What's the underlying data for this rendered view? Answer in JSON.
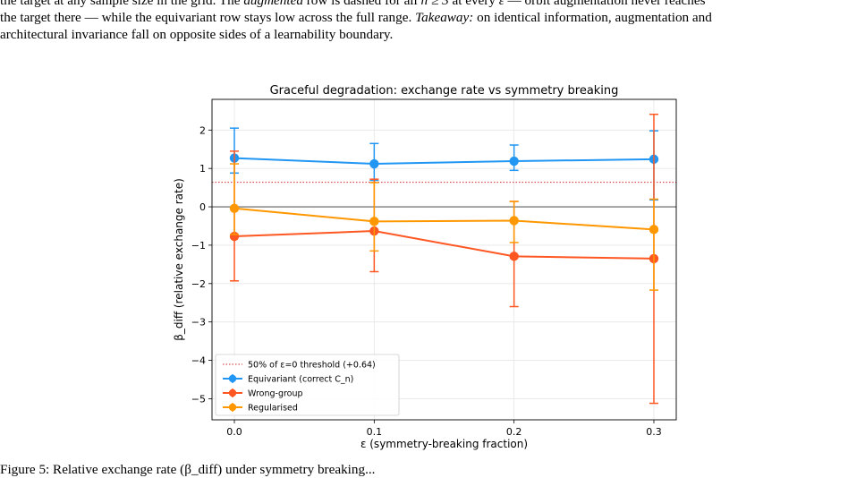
{
  "caption_top": {
    "line1": "the target at any sample size in the grid. The augmented row is dashed for all n ≥ 3 at every ε — orbit augmentation never reaches",
    "line1_parts": [
      "the target at any sample size in the grid. The ",
      "augmented",
      " row is dashed for all ",
      "n ≥ 3",
      " at every ",
      "ε",
      " — orbit augmentation never reaches"
    ],
    "line2": "the target there — while the equivariant row stays low across the full range.",
    "line2_takeaway_label": "Takeaway:",
    "line2_takeaway_text": " on identical information, augmentation and",
    "line3": "architectural invariance fall on opposite sides of a learnability boundary."
  },
  "caption_bottom": {
    "text": "Figure 5: Relative exchange rate (β_diff) under symmetry breaking..."
  },
  "chart_data": {
    "type": "line",
    "title": "Graceful degradation: exchange rate vs symmetry breaking",
    "xlabel": "ε (symmetry-breaking fraction)",
    "ylabel": "β_diff (relative exchange rate)",
    "x": [
      0.0,
      0.1,
      0.2,
      0.3
    ],
    "x_ticks": [
      "0.0",
      "0.1",
      "0.2",
      "0.3"
    ],
    "xlim": [
      -0.016,
      0.316
    ],
    "y_ticks": [
      "−5",
      "−4",
      "−3",
      "−2",
      "−1",
      "0",
      "1",
      "2"
    ],
    "y_tick_values": [
      -5,
      -4,
      -3,
      -2,
      -1,
      0,
      1,
      2
    ],
    "ylim": [
      -5.55,
      2.8
    ],
    "grid": true,
    "legend_position": "lower-left",
    "threshold": {
      "label": "50% of ε=0 threshold (+0.64)",
      "value": 0.64,
      "color": "#d62728",
      "style": "dotted"
    },
    "zero_line": 0,
    "series": [
      {
        "name": "Equivariant (correct C_n)",
        "color": "#2196F3",
        "values": [
          1.27,
          1.12,
          1.19,
          1.24
        ],
        "err_low": [
          0.88,
          0.69,
          0.95,
          0.18
        ],
        "err_high": [
          2.05,
          1.65,
          1.61,
          1.98
        ]
      },
      {
        "name": "Wrong-group",
        "color": "#FF5722",
        "values": [
          -0.77,
          -0.63,
          -1.29,
          -1.35
        ],
        "err_low": [
          -1.93,
          -1.69,
          -2.6,
          -5.12
        ],
        "err_high": [
          1.45,
          0.72,
          0.14,
          2.41
        ]
      },
      {
        "name": "Regularised",
        "color": "#FF9800",
        "values": [
          -0.04,
          -0.38,
          -0.36,
          -0.59
        ],
        "err_low": [
          -0.72,
          -1.15,
          -0.93,
          -2.17
        ],
        "err_high": [
          1.12,
          0.63,
          0.14,
          0.2
        ]
      }
    ]
  }
}
